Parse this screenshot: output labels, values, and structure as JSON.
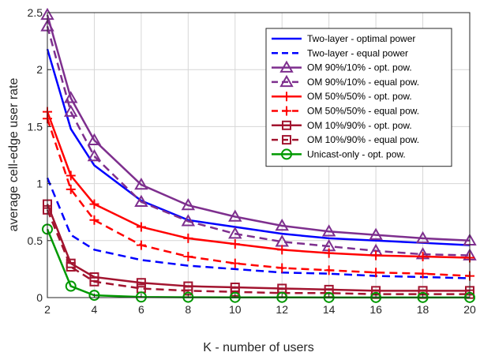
{
  "chart_data": {
    "type": "line",
    "title": "",
    "xlabel": "K - number of users",
    "ylabel": "average cell-edge user rate",
    "xlim": [
      2,
      20
    ],
    "ylim": [
      0,
      2.5
    ],
    "x_ticks": [
      "2",
      "4",
      "6",
      "8",
      "10",
      "12",
      "14",
      "16",
      "18",
      "20"
    ],
    "y_ticks": [
      "0",
      "0.5",
      "1",
      "1.5",
      "2",
      "2.5"
    ],
    "grid": true,
    "legend_position": "top-right",
    "x": [
      2,
      3,
      4,
      6,
      8,
      10,
      12,
      14,
      16,
      18,
      20
    ],
    "series": [
      {
        "name": "Two-layer - optimal power",
        "color": "#0000ff",
        "dash": "solid",
        "marker": "none",
        "values": [
          2.18,
          1.48,
          1.16,
          0.85,
          0.68,
          0.62,
          0.56,
          0.52,
          0.5,
          0.48,
          0.46
        ]
      },
      {
        "name": "Two-layer - equal power",
        "color": "#0000ff",
        "dash": "dashed",
        "marker": "none",
        "values": [
          1.05,
          0.55,
          0.42,
          0.33,
          0.28,
          0.25,
          0.22,
          0.21,
          0.19,
          0.18,
          0.17
        ]
      },
      {
        "name": "OM 90%/10% - opt. pow.",
        "color": "#7e2f8e",
        "dash": "solid",
        "marker": "triangle",
        "values": [
          2.48,
          1.75,
          1.38,
          0.99,
          0.81,
          0.71,
          0.63,
          0.58,
          0.55,
          0.52,
          0.5
        ]
      },
      {
        "name": "OM 90%/10% - equal pow.",
        "color": "#7e2f8e",
        "dash": "dashed",
        "marker": "triangle",
        "values": [
          2.38,
          1.63,
          1.24,
          0.84,
          0.67,
          0.56,
          0.49,
          0.45,
          0.41,
          0.38,
          0.37
        ]
      },
      {
        "name": "OM 50%/50% - opt. pow.",
        "color": "#ff0000",
        "dash": "solid",
        "marker": "plus",
        "values": [
          1.63,
          1.07,
          0.82,
          0.62,
          0.52,
          0.47,
          0.42,
          0.39,
          0.37,
          0.36,
          0.35
        ]
      },
      {
        "name": "OM 50%/50% - equal pow.",
        "color": "#ff0000",
        "dash": "dashed",
        "marker": "plus",
        "values": [
          1.57,
          0.95,
          0.68,
          0.46,
          0.36,
          0.3,
          0.26,
          0.24,
          0.22,
          0.21,
          0.19
        ]
      },
      {
        "name": "OM 10%/90% - opt. pow.",
        "color": "#a2142f",
        "dash": "solid",
        "marker": "square",
        "values": [
          0.82,
          0.3,
          0.18,
          0.13,
          0.1,
          0.09,
          0.08,
          0.07,
          0.06,
          0.06,
          0.06
        ]
      },
      {
        "name": "OM 10%/90% - equal pow.",
        "color": "#a2142f",
        "dash": "dashed",
        "marker": "square",
        "values": [
          0.77,
          0.27,
          0.14,
          0.08,
          0.06,
          0.05,
          0.04,
          0.04,
          0.03,
          0.03,
          0.03
        ]
      },
      {
        "name": "Unicast-only - opt. pow.",
        "color": "#009900",
        "dash": "solid",
        "marker": "circle",
        "values": [
          0.6,
          0.1,
          0.02,
          0.005,
          0.003,
          0.002,
          0.002,
          0.001,
          0.001,
          0.001,
          0.001
        ]
      }
    ]
  }
}
